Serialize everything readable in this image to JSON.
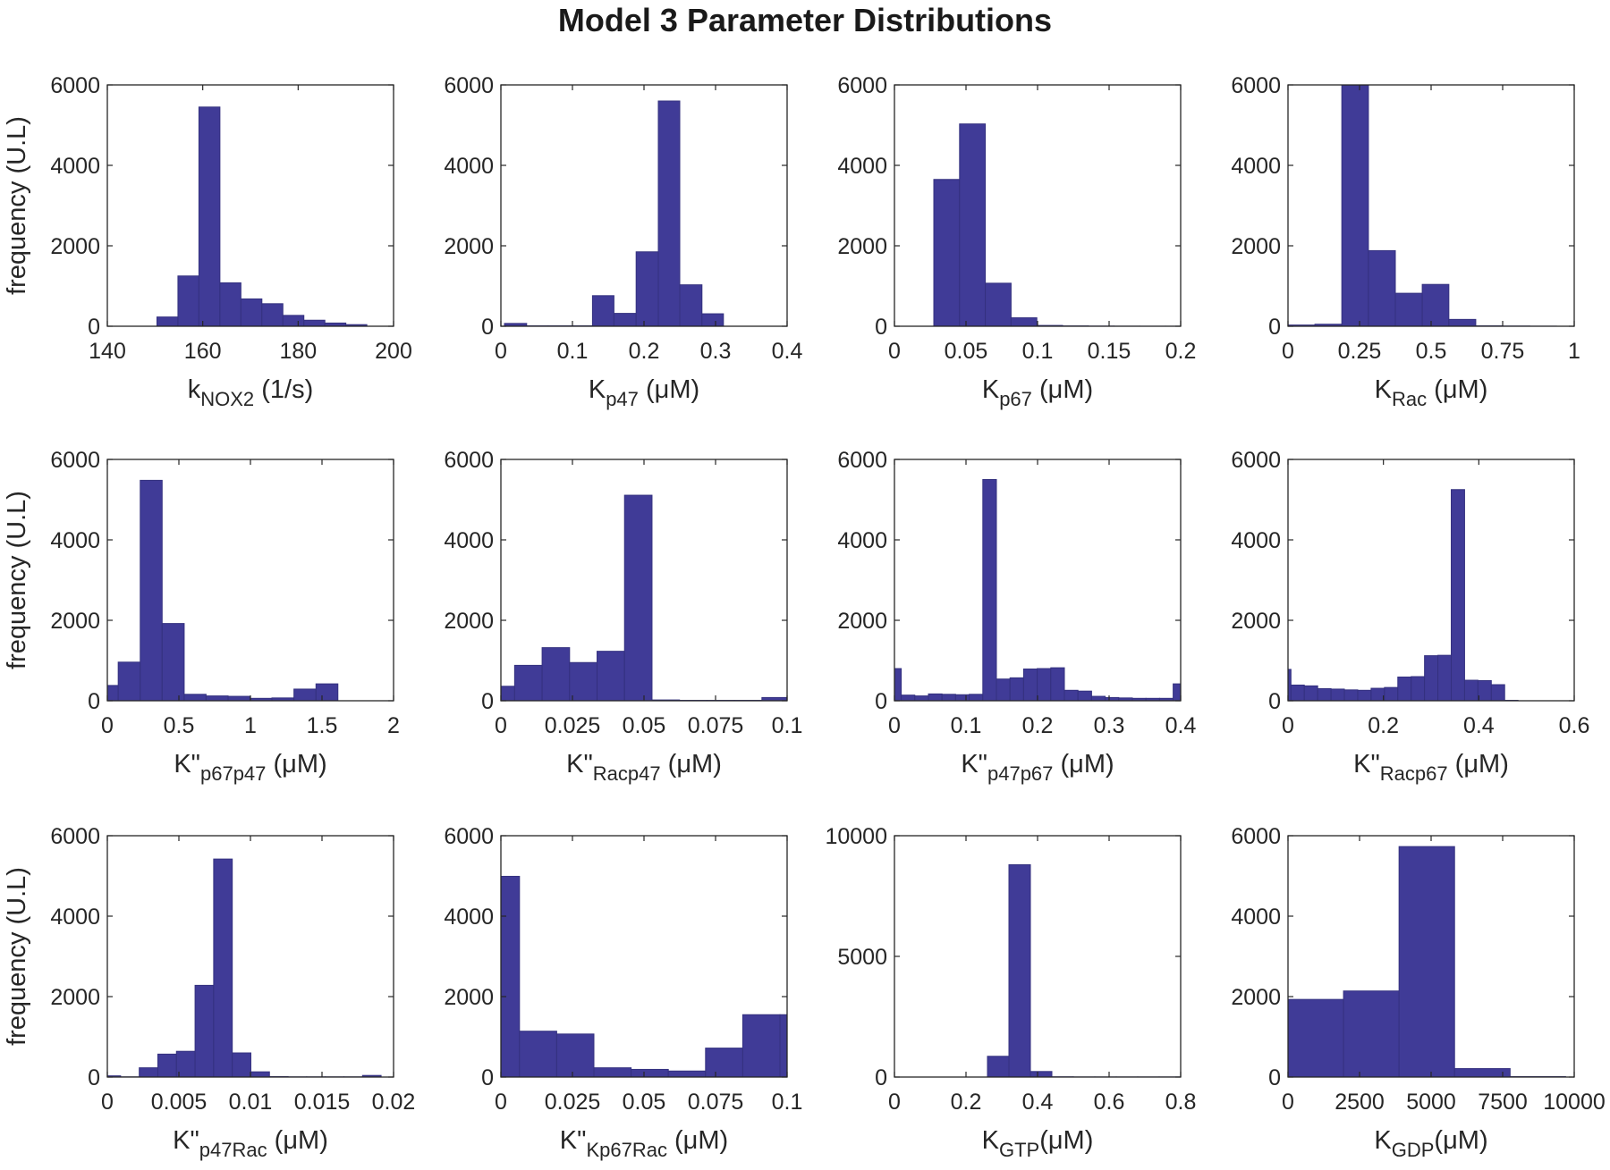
{
  "title": "Model 3 Parameter Distributions",
  "ylabel": "frequency (U.L)",
  "colors": {
    "bar": "#403b97",
    "bar_edge": "#34317f",
    "axis": "#262626",
    "text": "#262626"
  },
  "chart_data": [
    {
      "type": "bar",
      "xlabel": "k_NOX2 (1/s)",
      "xlabel_main": "k",
      "xlabel_sub": "NOX2",
      "xlabel_unit": " (1/s)",
      "xlim": [
        140,
        200
      ],
      "ylim": [
        0,
        6000
      ],
      "xticks": [
        140,
        160,
        180,
        200
      ],
      "xtick_labels": [
        "140",
        "160",
        "180",
        "200"
      ],
      "yticks": [
        0,
        2000,
        4000,
        6000
      ],
      "ytick_labels": [
        "0",
        "2000",
        "4000",
        "6000"
      ],
      "bin_edges": [
        150.4,
        154.8,
        159.2,
        163.6,
        168.0,
        172.4,
        176.8,
        181.2,
        185.6,
        190.0,
        194.4
      ],
      "values": [
        230,
        1250,
        5450,
        1080,
        680,
        560,
        270,
        150,
        80,
        40
      ]
    },
    {
      "type": "bar",
      "xlabel": "K_p47 (μM)",
      "xlabel_main": "K",
      "xlabel_sub": "p47",
      "xlabel_unit": " (μM)",
      "xlim": [
        0,
        0.4
      ],
      "ylim": [
        0,
        6000
      ],
      "xticks": [
        0,
        0.1,
        0.2,
        0.3,
        0.4
      ],
      "xtick_labels": [
        "0",
        "0.1",
        "0.2",
        "0.3",
        "0.4"
      ],
      "yticks": [
        0,
        2000,
        4000,
        6000
      ],
      "ytick_labels": [
        "0",
        "2000",
        "4000",
        "6000"
      ],
      "bin_edges": [
        0.005,
        0.036,
        0.066,
        0.097,
        0.128,
        0.158,
        0.189,
        0.22,
        0.25,
        0.281,
        0.311
      ],
      "values": [
        70,
        10,
        10,
        10,
        760,
        320,
        1850,
        5600,
        1030,
        310
      ]
    },
    {
      "type": "bar",
      "xlabel": "K_p67 (μM)",
      "xlabel_main": "K",
      "xlabel_sub": "p67",
      "xlabel_unit": " (μM)",
      "xlim": [
        0,
        0.2
      ],
      "ylim": [
        0,
        6000
      ],
      "xticks": [
        0,
        0.05,
        0.1,
        0.15,
        0.2
      ],
      "xtick_labels": [
        "0",
        "0.05",
        "0.1",
        "0.15",
        "0.2"
      ],
      "yticks": [
        0,
        2000,
        4000,
        6000
      ],
      "ytick_labels": [
        "0",
        "2000",
        "4000",
        "6000"
      ],
      "bin_edges": [
        0.0275,
        0.0455,
        0.0635,
        0.0815,
        0.0995,
        0.1175,
        0.1355,
        0.1535,
        0.1715,
        0.1895,
        0.2075
      ],
      "values": [
        3650,
        5030,
        1070,
        210,
        20,
        8,
        4,
        2,
        1,
        1
      ]
    },
    {
      "type": "bar",
      "xlabel": "K_Rac (μM)",
      "xlabel_main": "K",
      "xlabel_sub": "Rac",
      "xlabel_unit": " (μM)",
      "xlim": [
        0,
        1
      ],
      "ylim": [
        0,
        6000
      ],
      "xticks": [
        0,
        0.25,
        0.5,
        0.75,
        1
      ],
      "xtick_labels": [
        "0",
        "0.25",
        "0.5",
        "0.75",
        "1"
      ],
      "yticks": [
        0,
        2000,
        4000,
        6000
      ],
      "ytick_labels": [
        "0",
        "2000",
        "4000",
        "6000"
      ],
      "bin_edges": [
        0.0,
        0.094,
        0.188,
        0.281,
        0.375,
        0.469,
        0.562,
        0.656,
        0.75,
        0.844,
        0.938
      ],
      "values": [
        30,
        50,
        6000,
        1880,
        820,
        1040,
        170,
        10,
        5,
        2
      ]
    },
    {
      "type": "bar",
      "xlabel": "K\"_p67p47 (μM)",
      "xlabel_main": "K\"",
      "xlabel_sub": "p67p47",
      "xlabel_unit": " (μM)",
      "xlim": [
        0,
        2
      ],
      "ylim": [
        0,
        6000
      ],
      "xticks": [
        0,
        0.5,
        1,
        1.5,
        2
      ],
      "xtick_labels": [
        "0",
        "0.5",
        "1",
        "1.5",
        "2"
      ],
      "yticks": [
        0,
        2000,
        4000,
        6000
      ],
      "ytick_labels": [
        "0",
        "2000",
        "4000",
        "6000"
      ],
      "bin_edges": [
        0.0,
        0.076,
        0.23,
        0.383,
        0.537,
        0.69,
        0.844,
        0.997,
        1.15,
        1.304,
        1.458,
        1.611
      ],
      "values": [
        380,
        960,
        5480,
        1920,
        160,
        120,
        110,
        60,
        70,
        290,
        420
      ]
    },
    {
      "type": "bar",
      "xlabel": "K\"_Racp47 (μM)",
      "xlabel_main": "K\"",
      "xlabel_sub": "Racp47",
      "xlabel_unit": " (μM)",
      "xlim": [
        0,
        0.1
      ],
      "ylim": [
        0,
        6000
      ],
      "xticks": [
        0,
        0.025,
        0.05,
        0.075,
        0.1
      ],
      "xtick_labels": [
        "0",
        "0.025",
        "0.05",
        "0.075",
        "0.1"
      ],
      "yticks": [
        0,
        2000,
        4000,
        6000
      ],
      "ytick_labels": [
        "0",
        "2000",
        "4000",
        "6000"
      ],
      "bin_edges": [
        0.0,
        0.0048,
        0.0144,
        0.024,
        0.0336,
        0.0432,
        0.0528,
        0.0624,
        0.072,
        0.0816,
        0.0912,
        0.1008
      ],
      "values": [
        360,
        880,
        1320,
        950,
        1230,
        5110,
        20,
        10,
        10,
        10,
        80
      ]
    },
    {
      "type": "bar",
      "xlabel": "K\"_p47p67 (μM)",
      "xlabel_main": "K\"",
      "xlabel_sub": "p47p67",
      "xlabel_unit": " (μM)",
      "xlim": [
        0,
        0.4
      ],
      "ylim": [
        0,
        6000
      ],
      "xticks": [
        0,
        0.1,
        0.2,
        0.3,
        0.4
      ],
      "xtick_labels": [
        "0",
        "0.1",
        "0.2",
        "0.3",
        "0.4"
      ],
      "yticks": [
        0,
        2000,
        4000,
        6000
      ],
      "ytick_labels": [
        "0",
        "2000",
        "4000",
        "6000"
      ],
      "bin_edges": [
        0.0,
        0.0095,
        0.0285,
        0.0475,
        0.0665,
        0.0855,
        0.1045,
        0.1235,
        0.1425,
        0.1615,
        0.1805,
        0.1995,
        0.2185,
        0.2375,
        0.2565,
        0.2755,
        0.2945,
        0.3135,
        0.3325,
        0.3515,
        0.3705,
        0.3895,
        0.4085
      ],
      "values": [
        800,
        140,
        120,
        170,
        160,
        150,
        160,
        5500,
        540,
        570,
        790,
        800,
        820,
        260,
        240,
        110,
        80,
        70,
        60,
        60,
        60,
        420
      ]
    },
    {
      "type": "bar",
      "xlabel": "K\"_Racp67 (μM)",
      "xlabel_main": "K\"",
      "xlabel_sub": "Racp67",
      "xlabel_unit": " (μM)",
      "xlim": [
        0,
        0.6
      ],
      "ylim": [
        0,
        6000
      ],
      "xticks": [
        0,
        0.2,
        0.4,
        0.6
      ],
      "xtick_labels": [
        "0",
        "0.2",
        "0.4",
        "0.6"
      ],
      "yticks": [
        0,
        2000,
        4000,
        6000
      ],
      "ytick_labels": [
        "0",
        "2000",
        "4000",
        "6000"
      ],
      "bin_edges": [
        0.0,
        0.0062,
        0.0342,
        0.0622,
        0.0902,
        0.1182,
        0.1462,
        0.1742,
        0.2022,
        0.2302,
        0.2582,
        0.2862,
        0.3142,
        0.3422,
        0.3702,
        0.3982,
        0.4262,
        0.4542,
        0.4822
      ],
      "values": [
        780,
        390,
        370,
        300,
        290,
        270,
        260,
        310,
        330,
        590,
        600,
        1120,
        1130,
        5250,
        510,
        500,
        400,
        10
      ]
    },
    {
      "type": "bar",
      "xlabel": "K\"_p47Rac (μM)",
      "xlabel_main": "K\"",
      "xlabel_sub": "p47Rac",
      "xlabel_unit": " (μM)",
      "xlim": [
        0,
        0.02
      ],
      "ylim": [
        0,
        6000
      ],
      "xticks": [
        0,
        0.005,
        0.01,
        0.015,
        0.02
      ],
      "xtick_labels": [
        "0",
        "0.005",
        "0.01",
        "0.015",
        "0.02"
      ],
      "yticks": [
        0,
        2000,
        4000,
        6000
      ],
      "ytick_labels": [
        "0",
        "2000",
        "4000",
        "6000"
      ],
      "bin_edges": [
        0.0,
        0.00093,
        0.00223,
        0.00353,
        0.00483,
        0.00613,
        0.00743,
        0.00873,
        0.01003,
        0.01133,
        0.01263,
        0.01393,
        0.01523,
        0.01653,
        0.01783,
        0.01913
      ],
      "values": [
        30,
        5,
        230,
        570,
        640,
        2280,
        5420,
        600,
        130,
        10,
        5,
        5,
        5,
        5,
        40
      ]
    },
    {
      "type": "bar",
      "xlabel": "K\"_Kp67Rac (μM)",
      "xlabel_main": "K\"",
      "xlabel_sub": "Kp67Rac",
      "xlabel_unit": " (μM)",
      "xlim": [
        0,
        0.1
      ],
      "ylim": [
        0,
        6000
      ],
      "xticks": [
        0,
        0.025,
        0.05,
        0.075,
        0.1
      ],
      "xtick_labels": [
        "0",
        "0.025",
        "0.05",
        "0.075",
        "0.1"
      ],
      "yticks": [
        0,
        2000,
        4000,
        6000
      ],
      "ytick_labels": [
        "0",
        "2000",
        "4000",
        "6000"
      ],
      "bin_edges": [
        0.0,
        0.0065,
        0.0195,
        0.0325,
        0.0455,
        0.0585,
        0.0715,
        0.0845,
        0.0975,
        0.1105
      ],
      "values": [
        4990,
        1140,
        1070,
        230,
        190,
        150,
        720,
        1550,
        1550
      ]
    },
    {
      "type": "bar",
      "xlabel": "K_GTP(μM)",
      "xlabel_main": "K",
      "xlabel_sub": "GTP",
      "xlabel_unit": "(μM)",
      "xlim": [
        0,
        0.8
      ],
      "ylim": [
        0,
        10000
      ],
      "xticks": [
        0,
        0.2,
        0.4,
        0.6,
        0.8
      ],
      "xtick_labels": [
        "0",
        "0.2",
        "0.4",
        "0.6",
        "0.8"
      ],
      "yticks": [
        0,
        5000,
        10000
      ],
      "ytick_labels": [
        "0",
        "5000",
        "10000"
      ],
      "bin_edges": [
        0.26,
        0.32,
        0.38,
        0.44,
        0.5,
        0.56,
        0.62,
        0.68,
        0.74,
        0.8
      ],
      "values": [
        860,
        8800,
        230,
        10,
        5,
        5,
        5,
        5,
        5
      ]
    },
    {
      "type": "bar",
      "xlabel": "K_GDP(μM)",
      "xlabel_main": "K",
      "xlabel_sub": "GDP",
      "xlabel_unit": "(μM)",
      "xlim": [
        0,
        10000
      ],
      "ylim": [
        0,
        6000
      ],
      "xticks": [
        0,
        2500,
        5000,
        7500,
        10000
      ],
      "xtick_labels": [
        "0",
        "2500",
        "5000",
        "7500",
        "10000"
      ],
      "yticks": [
        0,
        2000,
        4000,
        6000
      ],
      "ytick_labels": [
        "0",
        "2000",
        "4000",
        "6000"
      ],
      "bin_edges": [
        0,
        1940,
        3880,
        5820,
        7760,
        9700
      ],
      "values": [
        1930,
        2140,
        5730,
        210,
        10
      ]
    }
  ]
}
